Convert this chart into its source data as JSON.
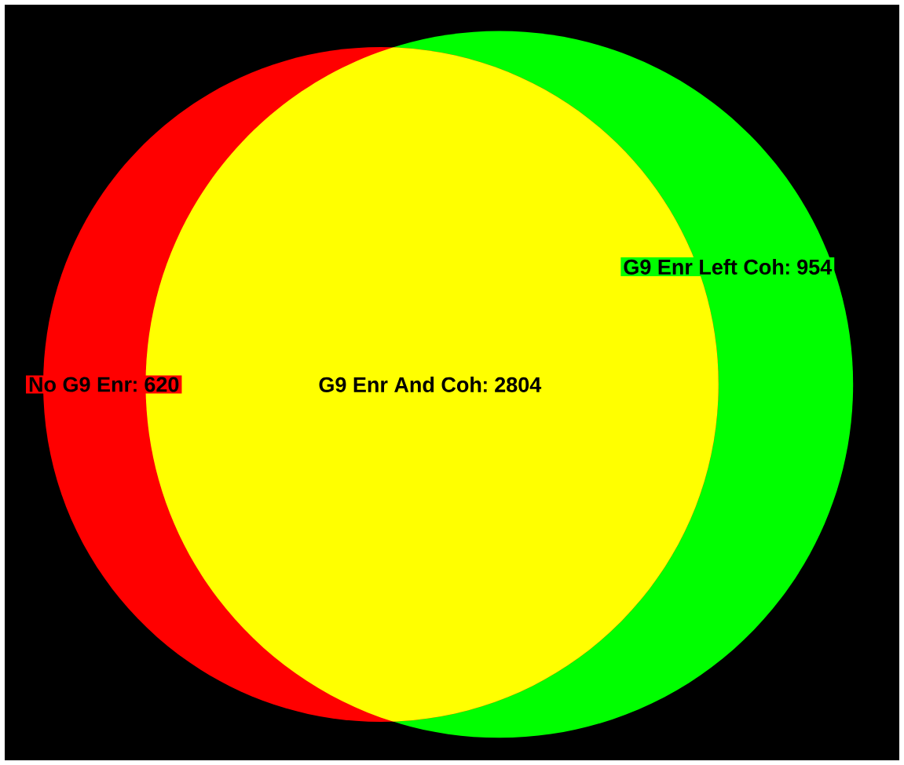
{
  "chart_data": {
    "type": "other",
    "categories": [
      "No G9 Enr",
      "G9 Enr And Coh",
      "G9 Enr Left Coh"
    ],
    "values": [
      620,
      2804,
      954
    ],
    "colors": [
      "#ff0000",
      "#ffff00",
      "#00ff00"
    ],
    "data_labels": true
  }
}
